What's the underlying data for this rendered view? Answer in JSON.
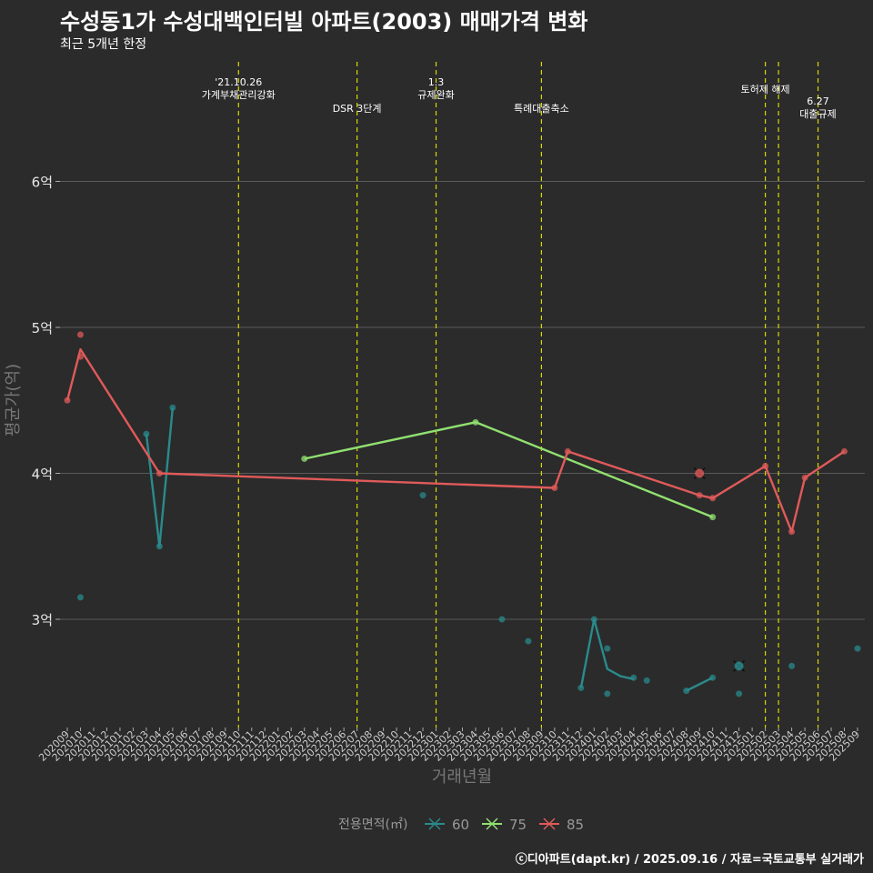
{
  "chart_data": {
    "type": "line",
    "title": "수성동1가 수성대백인터빌 아파트(2003) 매매가격 변화",
    "subtitle": "최근 5개년 한정",
    "xlabel": "거래년월",
    "ylabel": "평균가(억)",
    "caption": "ⓒ디아파트(dapt.kr) / 2025.09.16 / 자료=국토교통부 실거래가",
    "x_ticks": [
      "202009",
      "202010",
      "202011",
      "202012",
      "202101",
      "202102",
      "202103",
      "202104",
      "202105",
      "202106",
      "202107",
      "202108",
      "202109",
      "202110",
      "202111",
      "202112",
      "202201",
      "202202",
      "202203",
      "202204",
      "202205",
      "202206",
      "202207",
      "202208",
      "202209",
      "202210",
      "202211",
      "202212",
      "202301",
      "202302",
      "202303",
      "202304",
      "202305",
      "202306",
      "202307",
      "202308",
      "202309",
      "202310",
      "202311",
      "202312",
      "202401",
      "202402",
      "202403",
      "202404",
      "202405",
      "202406",
      "202407",
      "202408",
      "202409",
      "202410",
      "202411",
      "202412",
      "202501",
      "202502",
      "202503",
      "202504",
      "202505",
      "202506",
      "202507",
      "202508",
      "202509"
    ],
    "y_ticks": [
      {
        "v": 3,
        "label": "3억"
      },
      {
        "v": 4,
        "label": "4억"
      },
      {
        "v": 5,
        "label": "5억"
      },
      {
        "v": 6,
        "label": "6억"
      }
    ],
    "ylim": [
      2.3,
      6.8
    ],
    "legend_title": "전용면적(㎡)",
    "series": [
      {
        "name": "60",
        "color": "#2a8a8c",
        "line": [
          [
            6,
            4.27
          ],
          [
            7,
            3.5
          ],
          [
            8,
            4.45
          ]
        ],
        "points": [
          [
            1,
            3.15
          ],
          [
            6,
            4.27
          ],
          [
            7,
            3.5
          ],
          [
            8,
            4.45
          ],
          [
            27,
            3.85
          ],
          [
            33,
            3.0
          ],
          [
            35,
            2.85
          ],
          [
            39,
            2.53
          ],
          [
            40,
            3.0
          ],
          [
            41,
            2.8
          ],
          [
            41,
            2.49
          ],
          [
            43,
            2.6
          ],
          [
            44,
            2.58
          ],
          [
            47,
            2.51
          ],
          [
            49,
            2.6
          ],
          [
            51,
            2.68
          ],
          [
            51,
            2.49
          ],
          [
            55,
            2.68
          ],
          [
            60,
            2.8
          ]
        ],
        "segments": [
          [
            [
              39,
              2.53
            ],
            [
              40,
              3.0
            ],
            [
              41,
              2.66
            ],
            [
              42,
              2.61
            ],
            [
              43,
              2.59
            ]
          ],
          [
            [
              47,
              2.51
            ],
            [
              49,
              2.6
            ]
          ]
        ],
        "cancelled": [
          [
            51,
            2.68
          ]
        ]
      },
      {
        "name": "75",
        "color": "#90e070",
        "line": [
          [
            18,
            4.1
          ],
          [
            31,
            4.35
          ],
          [
            49,
            3.7
          ]
        ],
        "points": [
          [
            18,
            4.1
          ],
          [
            31,
            4.35
          ],
          [
            49,
            3.7
          ]
        ],
        "segments": [],
        "cancelled": []
      },
      {
        "name": "85",
        "color": "#e05a5a",
        "line": [
          [
            0,
            4.5
          ],
          [
            1,
            4.85
          ],
          [
            7,
            4.0
          ],
          [
            37,
            3.9
          ],
          [
            38,
            4.15
          ],
          [
            48,
            3.85
          ],
          [
            49,
            3.83
          ],
          [
            53,
            4.05
          ],
          [
            55,
            3.6
          ],
          [
            56,
            3.97
          ],
          [
            59,
            4.15
          ]
        ],
        "points": [
          [
            0,
            4.5
          ],
          [
            1,
            4.95
          ],
          [
            1,
            4.8
          ],
          [
            7,
            4.0
          ],
          [
            37,
            3.9
          ],
          [
            38,
            4.15
          ],
          [
            48,
            3.85
          ],
          [
            49,
            3.83
          ],
          [
            53,
            4.05
          ],
          [
            55,
            3.6
          ],
          [
            56,
            3.97
          ],
          [
            59,
            4.15
          ]
        ],
        "segments": [],
        "cancelled": [
          [
            48,
            4.0
          ]
        ]
      }
    ],
    "annotations": [
      {
        "x": 13,
        "lines": [
          "'21.10.26",
          "가계부채관리강화"
        ],
        "row": 0
      },
      {
        "x": 22,
        "lines": [
          "DSR 3단계"
        ],
        "row": 1
      },
      {
        "x": 28,
        "lines": [
          "1.3",
          "규제완화"
        ],
        "row": 0
      },
      {
        "x": 36,
        "lines": [
          "특례대출축소"
        ],
        "row": 1
      },
      {
        "x": 53,
        "lines": [
          "토허제 해제"
        ],
        "row": 2
      },
      {
        "x": 54,
        "lines": [],
        "row": 2
      },
      {
        "x": 57,
        "lines": [
          "6.27",
          "대출규제"
        ],
        "row": 3
      }
    ]
  }
}
